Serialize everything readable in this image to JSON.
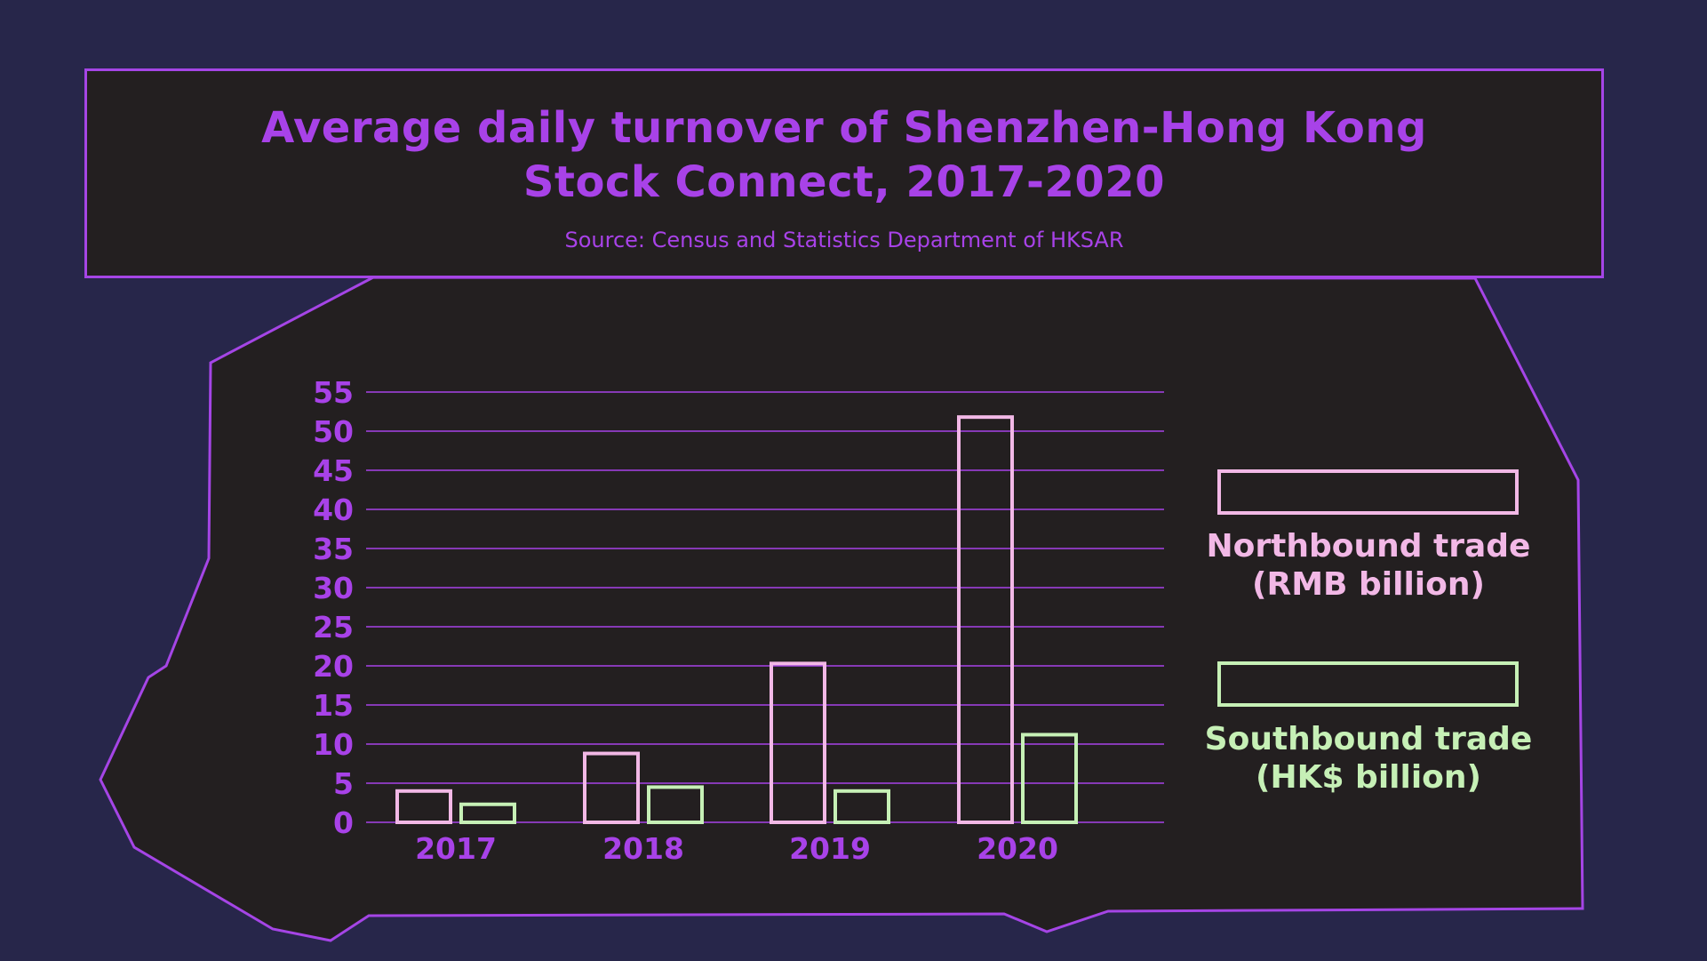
{
  "colors": {
    "background": "#27264a",
    "panel": "#231f20",
    "accent": "#a842e8",
    "northbound": "#f2b8e6",
    "southbound": "#c6f0b6"
  },
  "chart_data": {
    "type": "bar",
    "title": "Average daily turnover of Shenzhen-Hong Kong Stock Connect, 2017-2020",
    "title_lines": [
      "Average daily turnover of Shenzhen-Hong Kong",
      "Stock Connect, 2017-2020"
    ],
    "source": "Source: Census and Statistics Department of HKSAR",
    "categories": [
      "2017",
      "2018",
      "2019",
      "2020"
    ],
    "series": [
      {
        "name": "Northbound trade (RMB billion)",
        "legend_lines": [
          "Northbound trade",
          "(RMB billion)"
        ],
        "values": [
          4,
          8.8,
          20.3,
          51.8
        ]
      },
      {
        "name": "Southbound trade (HK$ billion)",
        "legend_lines": [
          "Southbound trade",
          "(HK$ billion)"
        ],
        "values": [
          2.3,
          4.5,
          4,
          11.2
        ]
      }
    ],
    "ylim": [
      0,
      55
    ],
    "yticks": [
      0,
      5,
      10,
      15,
      20,
      25,
      30,
      35,
      40,
      45,
      50,
      55
    ],
    "grid": true,
    "legend_position": "right"
  }
}
